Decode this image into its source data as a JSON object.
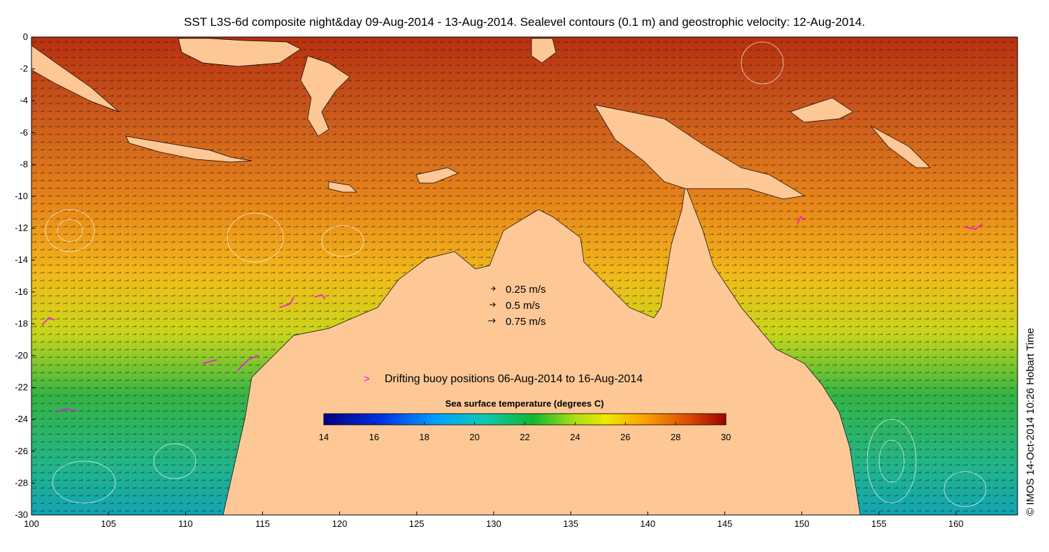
{
  "title": "SST L3S-6d composite night&day 09-Aug-2014 - 13-Aug-2014. Sealevel contours (0.1 m) and geostrophic velocity: 12-Aug-2014.",
  "axes": {
    "x_ticks": [
      "100",
      "105",
      "110",
      "115",
      "120",
      "125",
      "130",
      "135",
      "140",
      "145",
      "150",
      "155",
      "160"
    ],
    "y_ticks": [
      "0",
      "-2",
      "-4",
      "-6",
      "-8",
      "-10",
      "-12",
      "-14",
      "-16",
      "-18",
      "-20",
      "-22",
      "-24",
      "-26",
      "-28",
      "-30"
    ],
    "xlim": [
      100,
      164
    ],
    "ylim": [
      -30,
      0
    ]
  },
  "velocity_legend": [
    {
      "label": "0.25 m/s",
      "speed": 0.25
    },
    {
      "label": "0.5 m/s",
      "speed": 0.5
    },
    {
      "label": "0.75 m/s",
      "speed": 0.75
    }
  ],
  "buoy_legend": {
    "marker": ">",
    "label": "Drifting buoy positions 06-Aug-2014 to 16-Aug-2014"
  },
  "colorbar": {
    "title": "Sea surface temperature (degrees C)",
    "ticks": [
      "14",
      "16",
      "18",
      "20",
      "22",
      "24",
      "26",
      "28",
      "30"
    ],
    "range": [
      14,
      30
    ]
  },
  "credit": "© IMOS 14-Oct-2014 10:26 Hobart Time",
  "colors": {
    "land": "#fdc896",
    "buoy": "#ff00ff",
    "warm_sea": "#c8501e",
    "mid_sea": "#f0c81e",
    "cool_sea": "#1eb450"
  }
}
